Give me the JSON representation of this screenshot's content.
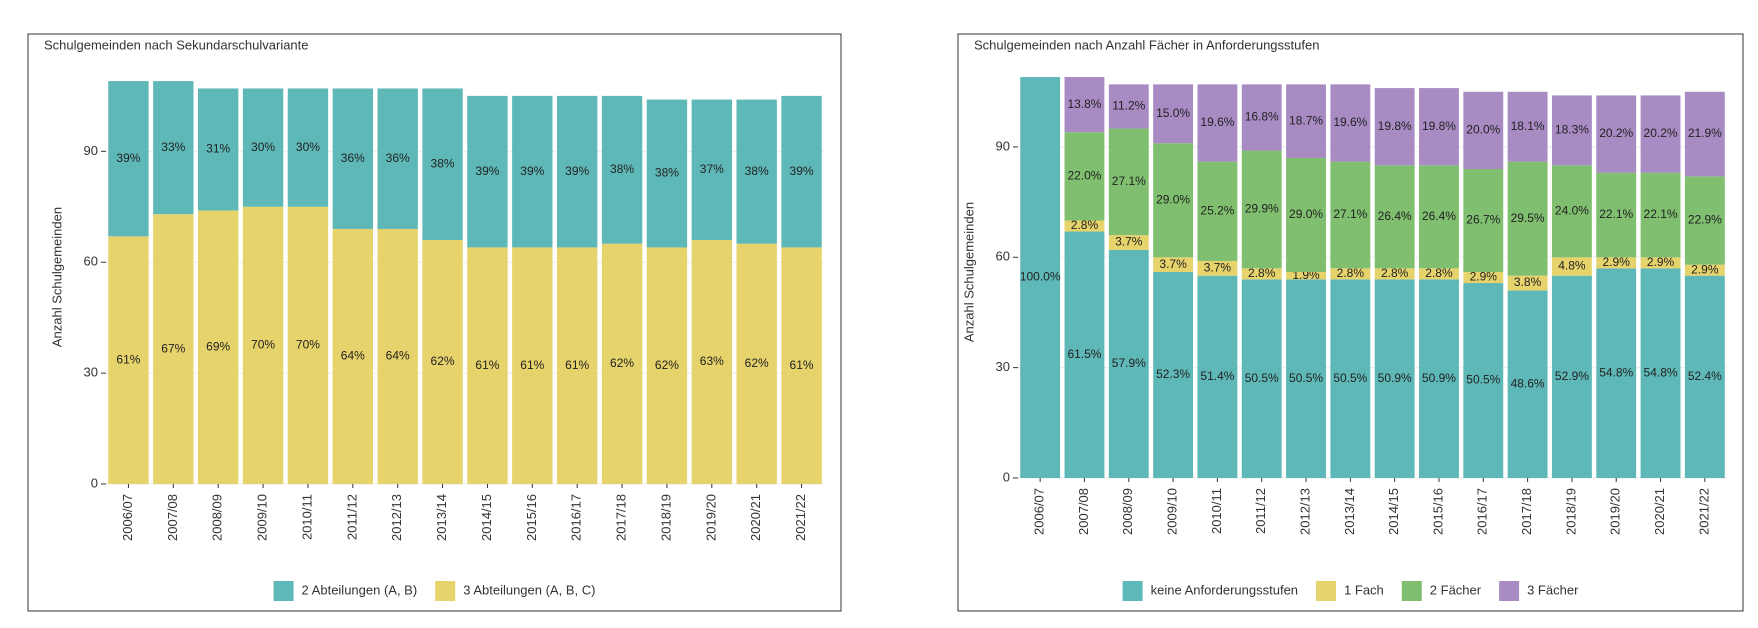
{
  "chart_data": [
    {
      "type": "stacked-bar",
      "title": "Schulgemeinden nach Sekundarschulvariante",
      "y_label": "Anzahl Schulgemeinden",
      "categories": [
        "2006/07",
        "2007/08",
        "2008/09",
        "2009/10",
        "2010/11",
        "2011/12",
        "2012/13",
        "2013/14",
        "2014/15",
        "2015/16",
        "2016/17",
        "2017/18",
        "2018/19",
        "2019/20",
        "2020/21",
        "2021/22"
      ],
      "series": [
        {
          "name": "3 Abteilungen (A, B, C)",
          "color": "#e6d36b",
          "values": [
            67,
            73,
            74,
            75,
            75,
            69,
            69,
            66,
            64,
            64,
            64,
            65,
            64,
            66,
            65,
            64
          ],
          "value_labels": [
            "61%",
            "67%",
            "69%",
            "70%",
            "70%",
            "64%",
            "64%",
            "62%",
            "61%",
            "61%",
            "61%",
            "62%",
            "62%",
            "63%",
            "62%",
            "61%"
          ]
        },
        {
          "name": "2 Abteilungen (A, B)",
          "color": "#5fb8b8",
          "values": [
            42,
            36,
            33,
            32,
            32,
            38,
            38,
            41,
            41,
            41,
            41,
            40,
            40,
            38,
            39,
            41
          ],
          "value_labels": [
            "39%",
            "33%",
            "31%",
            "30%",
            "30%",
            "36%",
            "36%",
            "38%",
            "39%",
            "39%",
            "39%",
            "38%",
            "38%",
            "37%",
            "38%",
            "39%"
          ]
        }
      ],
      "legend_order": [
        1,
        0
      ],
      "ylim": [
        0,
        112
      ],
      "yticks": [
        0,
        30,
        60,
        90
      ],
      "grid": true,
      "legend": "bottom"
    },
    {
      "type": "stacked-bar",
      "title": "Schulgemeinden nach Anzahl Fächer in Anforderungsstufen",
      "y_label": "Anzahl Schulgemeinden",
      "categories": [
        "2006/07",
        "2007/08",
        "2008/09",
        "2009/10",
        "2010/11",
        "2011/12",
        "2012/13",
        "2013/14",
        "2014/15",
        "2015/16",
        "2016/17",
        "2017/18",
        "2018/19",
        "2019/20",
        "2020/21",
        "2021/22"
      ],
      "series": [
        {
          "name": "keine Anforderungsstufen",
          "color": "#5fb8b8",
          "values": [
            109,
            67,
            62,
            56,
            55,
            54,
            54,
            54,
            54,
            54,
            53,
            51,
            55,
            57,
            57,
            55
          ],
          "value_labels": [
            "100.0%",
            "61.5%",
            "57.9%",
            "52.3%",
            "51.4%",
            "50.5%",
            "50.5%",
            "50.5%",
            "50.9%",
            "50.9%",
            "50.5%",
            "48.6%",
            "52.9%",
            "54.8%",
            "54.8%",
            "52.4%"
          ]
        },
        {
          "name": "1 Fach",
          "color": "#e6d36b",
          "values": [
            0,
            3,
            4,
            4,
            4,
            3,
            2,
            3,
            3,
            3,
            3,
            4,
            5,
            3,
            3,
            3
          ],
          "value_labels": [
            null,
            "2.8%",
            "3.7%",
            "3.7%",
            "3.7%",
            "2.8%",
            "1.9%",
            "2.8%",
            "2.8%",
            "2.8%",
            "2.9%",
            "3.8%",
            "4.8%",
            "2.9%",
            "2.9%",
            "2.9%"
          ]
        },
        {
          "name": "2 Fächer",
          "color": "#7fbf6f",
          "values": [
            0,
            24,
            29,
            31,
            27,
            32,
            31,
            29,
            28,
            28,
            28,
            31,
            25,
            23,
            23,
            24
          ],
          "value_labels": [
            null,
            "22.0%",
            "27.1%",
            "29.0%",
            "25.2%",
            "29.9%",
            "29.0%",
            "27.1%",
            "26.4%",
            "26.4%",
            "26.7%",
            "29.5%",
            "24.0%",
            "22.1%",
            "22.1%",
            "22.9%"
          ]
        },
        {
          "name": "3 Fächer",
          "color": "#a98bc4",
          "values": [
            0,
            15,
            12,
            16,
            21,
            18,
            20,
            21,
            21,
            21,
            21,
            19,
            19,
            21,
            21,
            23
          ],
          "value_labels": [
            null,
            "13.8%",
            "11.2%",
            "15.0%",
            "19.6%",
            "16.8%",
            "18.7%",
            "19.6%",
            "19.8%",
            "19.8%",
            "20.0%",
            "18.1%",
            "18.3%",
            "20.2%",
            "20.2%",
            "21.9%"
          ]
        }
      ],
      "legend_order": [
        0,
        1,
        2,
        3
      ],
      "ylim": [
        0,
        112
      ],
      "yticks": [
        0,
        30,
        60,
        90
      ],
      "grid": true,
      "legend": "bottom"
    }
  ]
}
